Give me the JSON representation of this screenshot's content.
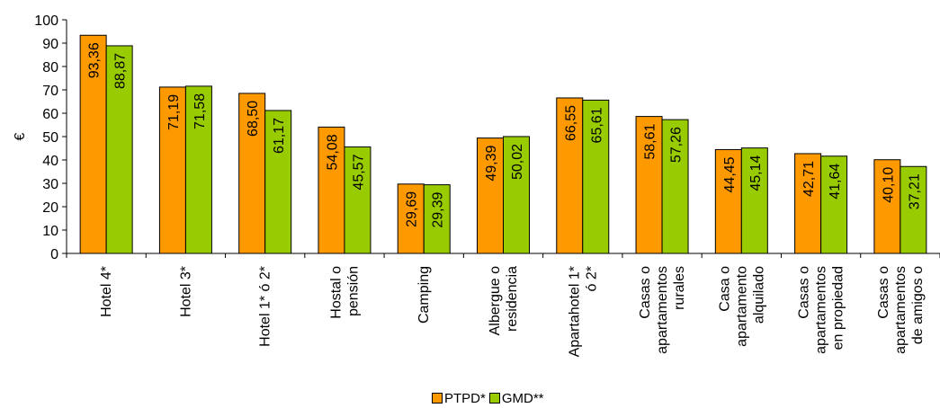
{
  "chart_data": {
    "type": "bar",
    "title": "",
    "xlabel": "",
    "ylabel": "€",
    "ylim": [
      0,
      100
    ],
    "yticks": [
      0,
      10,
      20,
      30,
      40,
      50,
      60,
      70,
      80,
      90,
      100
    ],
    "grid": false,
    "legend_position": "bottom",
    "categories": [
      [
        "Hotel 4*"
      ],
      [
        "Hotel 3*"
      ],
      [
        "Hotel 1* ó 2*"
      ],
      [
        "Hostal o",
        "pensión"
      ],
      [
        "Camping"
      ],
      [
        "Albergue o",
        "residencia"
      ],
      [
        "Apartahotel 1*",
        "ó 2*"
      ],
      [
        "Casas o",
        "apartamentos",
        "rurales"
      ],
      [
        "Casa o",
        "apartamento",
        "alquilado"
      ],
      [
        "Casas o",
        "apartamentos",
        "en propiedad"
      ],
      [
        "Casas o",
        "apartamentos",
        "de amigos o"
      ]
    ],
    "series": [
      {
        "name": "PTPD*",
        "color": "#FF9900",
        "values": [
          93.36,
          71.19,
          68.5,
          54.08,
          29.69,
          49.39,
          66.55,
          58.61,
          44.45,
          42.71,
          40.1
        ],
        "labels": [
          "93,36",
          "71,19",
          "68,50",
          "54,08",
          "29,69",
          "49,39",
          "66,55",
          "58,61",
          "44,45",
          "42,71",
          "40,10"
        ]
      },
      {
        "name": "GMD**",
        "color": "#99CC00",
        "values": [
          88.87,
          71.58,
          61.17,
          45.57,
          29.39,
          50.02,
          65.61,
          57.26,
          45.14,
          41.64,
          37.21
        ],
        "labels": [
          "88,87",
          "71,58",
          "61,17",
          "45,57",
          "29,39",
          "50,02",
          "65,61",
          "57,26",
          "45,14",
          "41,64",
          "37,21"
        ]
      }
    ]
  }
}
